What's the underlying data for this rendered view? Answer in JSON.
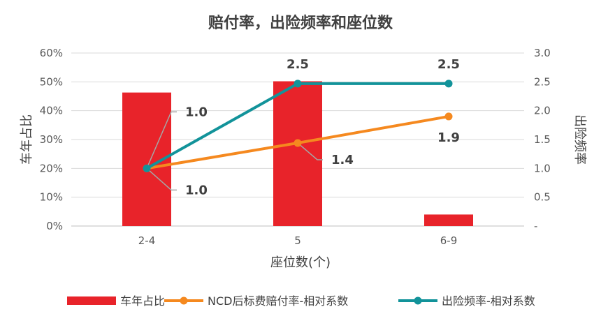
{
  "chart_data": {
    "type": "bar+line",
    "title": "赔付率，出险频率和座位数",
    "xlabel": "座位数(个)",
    "ylabel_left": "车年占比",
    "ylabel_right": "出险频率",
    "categories": [
      "2-4",
      "5",
      "6-9"
    ],
    "ylim_left": [
      0,
      0.6
    ],
    "ylim_right": [
      0,
      3.0
    ],
    "left_ticks": [
      "0%",
      "10%",
      "20%",
      "30%",
      "40%",
      "50%",
      "60%"
    ],
    "right_ticks": [
      "-",
      "0.5",
      "1.0",
      "1.5",
      "2.0",
      "2.5",
      "3.0"
    ],
    "grid": true,
    "legend_position": "bottom",
    "series": [
      {
        "name": "车年占比",
        "type": "bar",
        "axis": "left",
        "color": "#E8232A",
        "values": [
          0.463,
          0.502,
          0.04
        ]
      },
      {
        "name": "NCD后标费赔付率-相对系数",
        "type": "line",
        "axis": "right",
        "color": "#F5891F",
        "values": [
          1.0,
          1.44,
          1.9
        ],
        "labels": [
          "1.0",
          "1.4",
          "1.9"
        ]
      },
      {
        "name": "出险频率-相对系数",
        "type": "line",
        "axis": "right",
        "color": "#12939A",
        "values": [
          1.0,
          2.47,
          2.47
        ],
        "labels": [
          "1.0",
          "2.5",
          "2.5"
        ]
      }
    ]
  }
}
